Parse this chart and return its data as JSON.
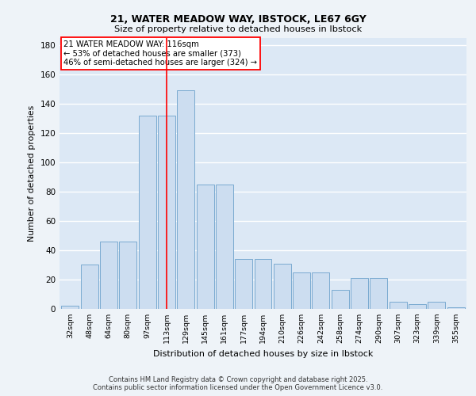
{
  "title1": "21, WATER MEADOW WAY, IBSTOCK, LE67 6GY",
  "title2": "Size of property relative to detached houses in Ibstock",
  "xlabel": "Distribution of detached houses by size in Ibstock",
  "ylabel": "Number of detached properties",
  "categories": [
    "32sqm",
    "48sqm",
    "64sqm",
    "80sqm",
    "97sqm",
    "113sqm",
    "129sqm",
    "145sqm",
    "161sqm",
    "177sqm",
    "194sqm",
    "210sqm",
    "226sqm",
    "242sqm",
    "258sqm",
    "274sqm",
    "290sqm",
    "307sqm",
    "323sqm",
    "339sqm",
    "355sqm"
  ],
  "bar_values": [
    2,
    30,
    46,
    46,
    132,
    132,
    149,
    85,
    85,
    34,
    34,
    31,
    25,
    25,
    13,
    21,
    21,
    5,
    3,
    5,
    1
  ],
  "bar_color": "#ccddf0",
  "bar_edge_color": "#7aaad0",
  "vline_color": "red",
  "annotation_title": "21 WATER MEADOW WAY: 116sqm",
  "annotation_line1": "← 53% of detached houses are smaller (373)",
  "annotation_line2": "46% of semi-detached houses are larger (324) →",
  "footnote1": "Contains HM Land Registry data © Crown copyright and database right 2025.",
  "footnote2": "Contains public sector information licensed under the Open Government Licence v3.0.",
  "ylim": [
    0,
    185
  ],
  "yticks": [
    0,
    20,
    40,
    60,
    80,
    100,
    120,
    140,
    160,
    180
  ],
  "bg_color": "#dce8f5",
  "fig_color": "#eef3f8",
  "grid_color": "#ffffff"
}
